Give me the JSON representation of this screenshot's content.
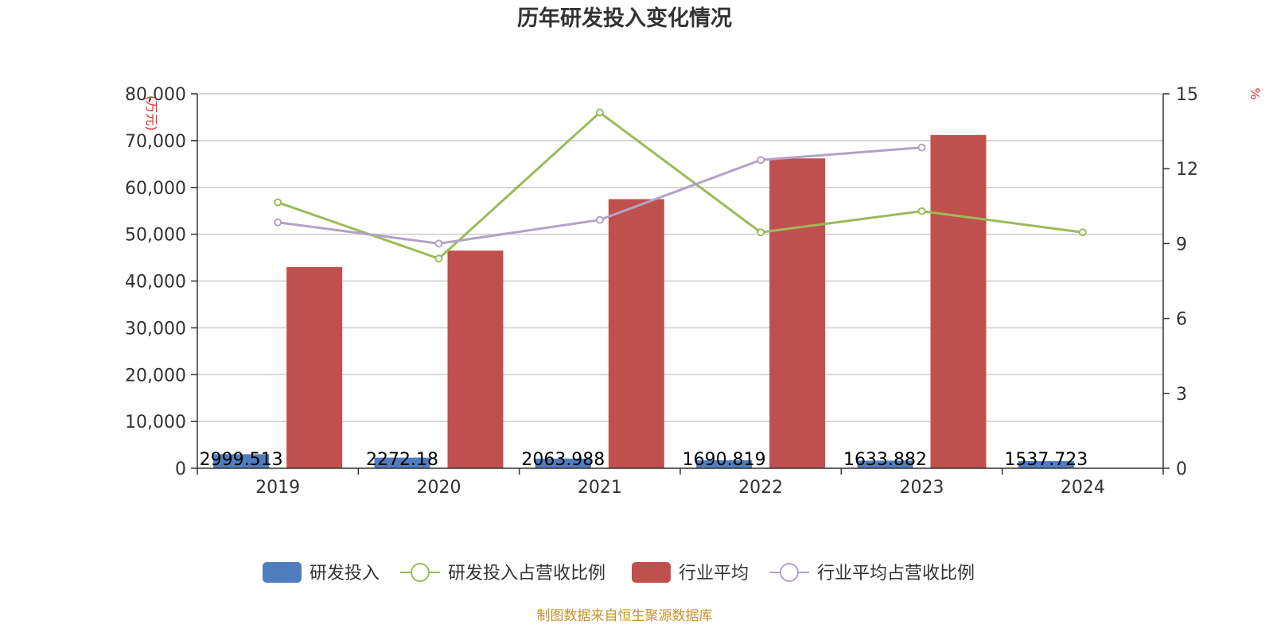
{
  "chart_data": {
    "type": "bar",
    "title": "历年研发投入变化情况",
    "categories": [
      "2019",
      "2020",
      "2021",
      "2022",
      "2023",
      "2024"
    ],
    "y_left": {
      "unit": "(万元)",
      "range": [
        0,
        80000
      ],
      "ticks": [
        "0",
        "10,000",
        "20,000",
        "30,000",
        "40,000",
        "50,000",
        "60,000",
        "70,000",
        "80,000"
      ]
    },
    "y_right": {
      "unit": "%",
      "range": [
        0,
        15
      ],
      "ticks": [
        "0",
        "3",
        "6",
        "9",
        "12",
        "15"
      ]
    },
    "grid": true,
    "legend_position": "bottom",
    "series": [
      {
        "name": "研发投入",
        "kind": "bar",
        "axis": "left",
        "color": "#4f7ec0",
        "values": [
          2999.513,
          2272.18,
          2063.988,
          1690.819,
          1633.882,
          1537.723
        ],
        "labels": [
          "2999.513",
          "2272.18",
          "2063.988",
          "1690.819",
          "1633.882",
          "1537.723"
        ]
      },
      {
        "name": "研发投入占营收比例",
        "kind": "line",
        "axis": "right",
        "color": "#9bbb59",
        "values": [
          10.65,
          8.4,
          14.25,
          9.45,
          10.3,
          9.45
        ]
      },
      {
        "name": "行业平均",
        "kind": "bar",
        "axis": "left",
        "color": "#c0504d",
        "values": [
          43000,
          46500,
          57500,
          66200,
          71200,
          null
        ]
      },
      {
        "name": "行业平均占营收比例",
        "kind": "line",
        "axis": "right",
        "color": "#b3a2c7",
        "values": [
          9.85,
          9.0,
          9.95,
          12.35,
          12.85,
          null
        ]
      }
    ]
  },
  "footer": {
    "source": "制图数据来自恒生聚源数据库"
  }
}
